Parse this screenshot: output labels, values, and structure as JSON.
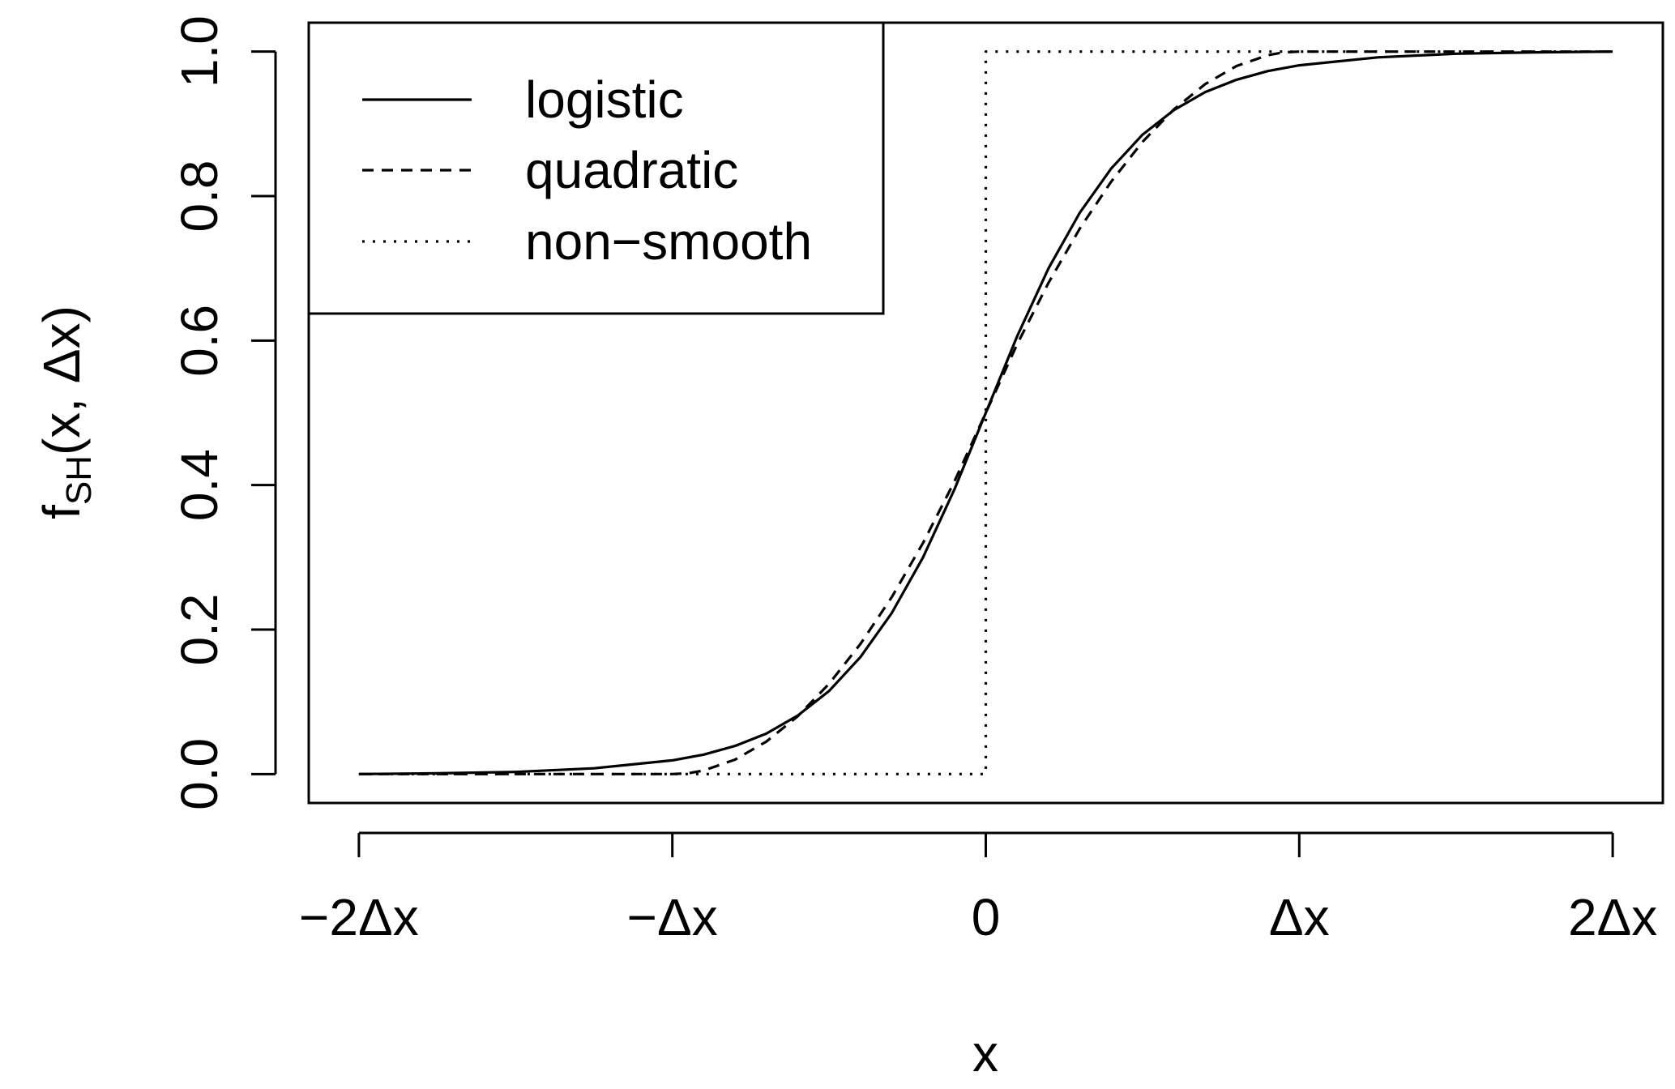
{
  "chart_data": {
    "type": "line",
    "xlabel": "x",
    "ylabel": {
      "main": "f",
      "sub": "SH",
      "rest": "(x, Δx)"
    },
    "x_unit": "Δx",
    "xlim": [
      -2.16,
      2.16
    ],
    "ylim": [
      -0.04,
      1.04
    ],
    "x_ticks": [
      {
        "value": -2,
        "label": "−2Δx"
      },
      {
        "value": -1,
        "label": "−Δx"
      },
      {
        "value": 0,
        "label": "0"
      },
      {
        "value": 1,
        "label": "Δx"
      },
      {
        "value": 2,
        "label": "2Δx"
      }
    ],
    "y_ticks": [
      {
        "value": 0.0,
        "label": "0.0"
      },
      {
        "value": 0.2,
        "label": "0.2"
      },
      {
        "value": 0.4,
        "label": "0.4"
      },
      {
        "value": 0.6,
        "label": "0.6"
      },
      {
        "value": 0.8,
        "label": "0.8"
      },
      {
        "value": 1.0,
        "label": "1.0"
      }
    ],
    "grid": false,
    "legend_position": "top-left",
    "series": [
      {
        "name": "logistic",
        "style": "solid",
        "x": [
          -2.0,
          -1.75,
          -1.5,
          -1.25,
          -1.0,
          -0.9,
          -0.8,
          -0.7,
          -0.6,
          -0.5,
          -0.4,
          -0.3,
          -0.2,
          -0.1,
          0.0,
          0.1,
          0.2,
          0.3,
          0.4,
          0.5,
          0.6,
          0.7,
          0.8,
          0.9,
          1.0,
          1.25,
          1.5,
          1.75,
          2.0
        ],
        "y": [
          0.0,
          0.001,
          0.003,
          0.008,
          0.019,
          0.027,
          0.039,
          0.056,
          0.081,
          0.115,
          0.162,
          0.223,
          0.3,
          0.394,
          0.5,
          0.606,
          0.7,
          0.777,
          0.838,
          0.885,
          0.919,
          0.944,
          0.961,
          0.973,
          0.981,
          0.992,
          0.997,
          0.999,
          1.0
        ]
      },
      {
        "name": "quadratic",
        "style": "dashed",
        "x": [
          -2.0,
          -1.5,
          -1.0,
          -0.95,
          -0.9,
          -0.8,
          -0.7,
          -0.6,
          -0.5,
          -0.4,
          -0.3,
          -0.2,
          -0.1,
          0.0,
          0.1,
          0.2,
          0.3,
          0.4,
          0.5,
          0.6,
          0.7,
          0.8,
          0.9,
          0.95,
          1.0,
          1.5,
          2.0
        ],
        "y": [
          0.0,
          0.0,
          0.0,
          0.001,
          0.005,
          0.02,
          0.045,
          0.08,
          0.125,
          0.18,
          0.245,
          0.32,
          0.405,
          0.5,
          0.595,
          0.68,
          0.755,
          0.82,
          0.875,
          0.92,
          0.955,
          0.98,
          0.995,
          0.999,
          1.0,
          1.0,
          1.0
        ]
      },
      {
        "name": "non−smooth",
        "style": "dotted",
        "x": [
          -2.0,
          0.0,
          0.0,
          2.0
        ],
        "y": [
          0.0,
          0.0,
          1.0,
          1.0
        ]
      }
    ]
  }
}
